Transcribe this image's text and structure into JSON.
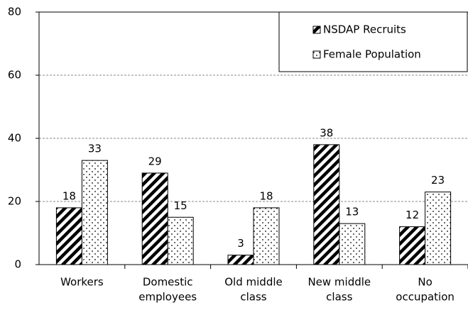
{
  "chart_data": {
    "type": "bar",
    "categories": [
      [
        "Workers"
      ],
      [
        "Domestic",
        "employees"
      ],
      [
        "Old middle",
        "class"
      ],
      [
        "New middle",
        "class"
      ],
      [
        "No",
        "occupation"
      ]
    ],
    "series": [
      {
        "name": "NSDAP Recruits",
        "color": "hatch",
        "values": [
          18,
          29,
          3,
          38,
          12
        ]
      },
      {
        "name": "Female Population",
        "color": "dots",
        "values": [
          33,
          15,
          18,
          13,
          23
        ]
      }
    ],
    "ylim": [
      0,
      80
    ],
    "yticks": [
      0,
      20,
      40,
      60,
      80
    ],
    "grid": true,
    "legend": "top-right"
  }
}
